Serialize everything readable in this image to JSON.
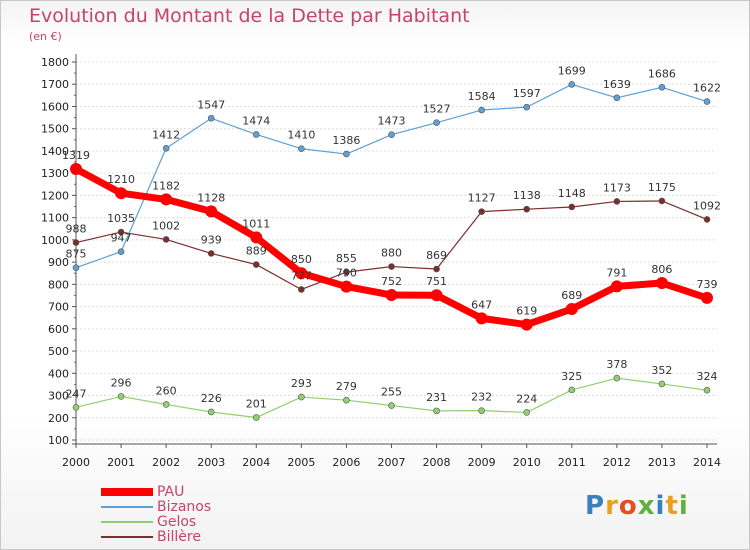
{
  "header": {
    "title": "Evolution du Montant de la Dette par Habitant",
    "subtitle": "(en €)"
  },
  "logo": {
    "letters": [
      "P",
      "r",
      "o",
      "x",
      "i",
      "t",
      "i"
    ],
    "colors": [
      "#3a7fc0",
      "#e8a020",
      "#e05020",
      "#60b040",
      "#3a7fc0",
      "#e8a020",
      "#60b040"
    ]
  },
  "chart_data": {
    "type": "line",
    "title": "Evolution du Montant de la Dette par Habitant",
    "ylabel": "(en €)",
    "xlabel": "",
    "x": [
      "2000",
      "2001",
      "2002",
      "2003",
      "2004",
      "2005",
      "2006",
      "2007",
      "2008",
      "2009",
      "2010",
      "2011",
      "2012",
      "2013",
      "2014"
    ],
    "ylim": [
      100,
      1800
    ],
    "yticks": [
      100,
      200,
      300,
      400,
      500,
      600,
      700,
      800,
      900,
      1000,
      1100,
      1200,
      1300,
      1400,
      1500,
      1600,
      1700,
      1800
    ],
    "grid": "horizontal",
    "legend_position": "bottom-left",
    "series": [
      {
        "name": "PAU",
        "color": "#ff0000",
        "values": [
          1319,
          1210,
          1182,
          1128,
          1011,
          850,
          790,
          752,
          751,
          647,
          619,
          689,
          791,
          806,
          739
        ]
      },
      {
        "name": "Bizanos",
        "color": "#5ea0d4",
        "values": [
          875,
          947,
          1412,
          1547,
          1474,
          1410,
          1386,
          1473,
          1527,
          1584,
          1597,
          1699,
          1639,
          1686,
          1622
        ]
      },
      {
        "name": "Gelos",
        "color": "#90d070",
        "values": [
          247,
          296,
          260,
          226,
          201,
          293,
          279,
          255,
          231,
          232,
          224,
          325,
          378,
          352,
          324
        ]
      },
      {
        "name": "Billère",
        "color": "#7a2e2e",
        "values": [
          988,
          1035,
          1002,
          939,
          889,
          777,
          855,
          880,
          869,
          1127,
          1138,
          1148,
          1173,
          1175,
          1092
        ]
      }
    ]
  }
}
